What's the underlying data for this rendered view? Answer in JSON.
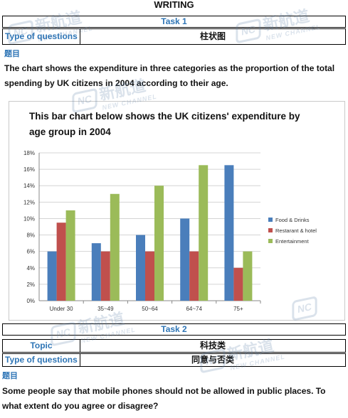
{
  "heading": "WRITING",
  "task1": {
    "title": "Task 1",
    "type_label": "Type of questions",
    "type_value": "柱状图",
    "prompt_label": "题目",
    "prompt_text": "The chart shows the expenditure in three categories as the proportion of the total spending by UK citizens in 2004 according to their age."
  },
  "task2": {
    "title": "Task 2",
    "topic_label": "Topic",
    "topic_value": "科技类",
    "type_label": "Type of questions",
    "type_value": "同意与否类",
    "prompt_label": "题目",
    "prompt_text": "Some people say that mobile phones should not be allowed in public places. To what extent do you agree or disagree?"
  },
  "watermark": {
    "logo": "NC",
    "cn": "新航道",
    "en": "NEW CHANNEL"
  },
  "colors": {
    "accent_blue": "#2e75b6",
    "food": "#4a7ebb",
    "restaurant": "#c0504d",
    "entertainment": "#9bbb59"
  },
  "chart_data": {
    "type": "bar",
    "title_line1": "This bar chart below shows the UK citizens' expenditure by",
    "title_line2": "age group in 2004",
    "categories": [
      "Under 30",
      "35~49",
      "50~64",
      "64~74",
      "75+"
    ],
    "series": [
      {
        "name": "Food & Drinks",
        "values": [
          6,
          7,
          8,
          10,
          16.5
        ]
      },
      {
        "name": "Restarant & hotel",
        "values": [
          9.5,
          6,
          6,
          6,
          4
        ]
      },
      {
        "name": "Entertainment",
        "values": [
          11,
          13,
          14,
          16.5,
          6
        ]
      }
    ],
    "y_ticks": [
      "0%",
      "2%",
      "4%",
      "6%",
      "8%",
      "10%",
      "12%",
      "14%",
      "16%",
      "18%"
    ],
    "ylim": [
      0,
      18
    ],
    "grid": true,
    "legend_position": "right"
  }
}
